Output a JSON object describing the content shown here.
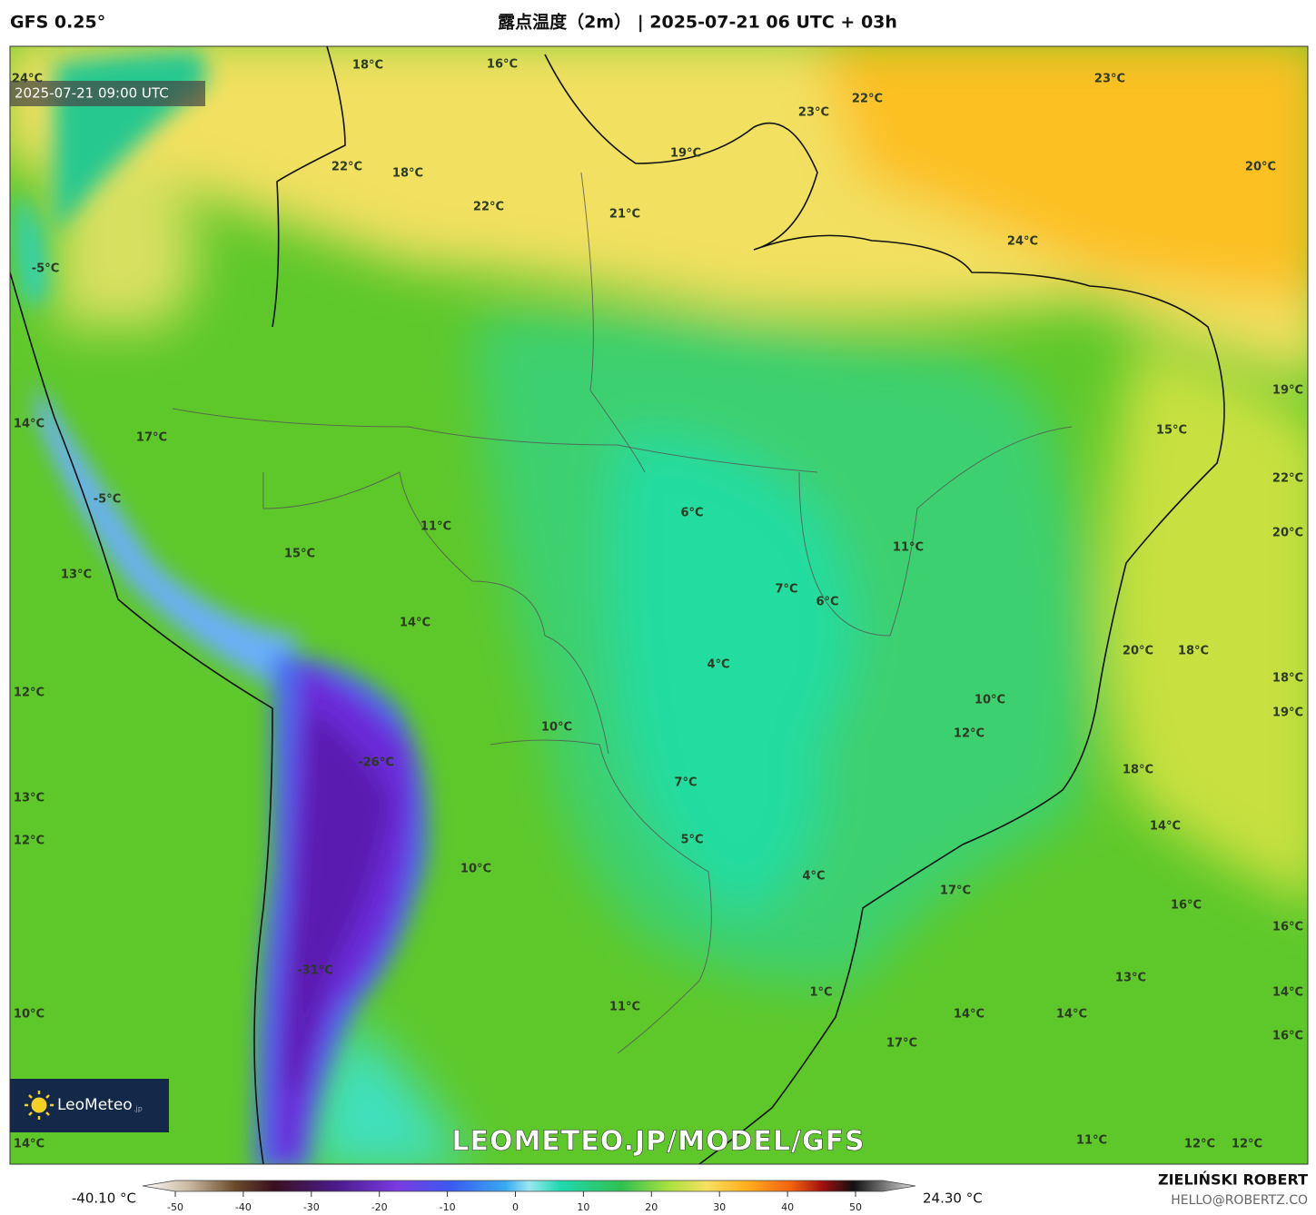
{
  "header": {
    "model": "GFS 0.25°",
    "title": "露点温度（2m） | 2025-07-21 06 UTC + 03h"
  },
  "valid_time": "2025-07-21 09:00 UTC",
  "map_labels": [
    "24°C",
    "18°C",
    "16°C",
    "22°C",
    "23°C",
    "23°C",
    "19°C",
    "20°C",
    "22°C",
    "18°C",
    "22°C",
    "21°C",
    "24°C",
    "-5°C",
    "19°C",
    "14°C",
    "17°C",
    "15°C",
    "-5°C",
    "22°C",
    "6°C",
    "20°C",
    "11°C",
    "11°C",
    "15°C",
    "13°C",
    "7°C",
    "6°C",
    "14°C",
    "4°C",
    "20°C",
    "18°C",
    "18°C",
    "12°C",
    "10°C",
    "19°C",
    "10°C",
    "12°C",
    "-26°C",
    "18°C",
    "7°C",
    "13°C",
    "14°C",
    "12°C",
    "5°C",
    "4°C",
    "10°C",
    "17°C",
    "16°C",
    "16°C",
    "-31°C",
    "13°C",
    "1°C",
    "14°C",
    "11°C",
    "10°C",
    "14°C",
    "14°C",
    "16°C",
    "17°C",
    "14°C",
    "11°C",
    "12°C",
    "12°C"
  ],
  "logo": {
    "name": "LeoMeteo",
    "suffix": ".jp"
  },
  "watermark": "LEOMETEO.JP/MODEL/GFS",
  "colorbar": {
    "min_label": "-40.10 °C",
    "max_label": "24.30 °C",
    "ticks": [
      -50,
      -40,
      -30,
      -20,
      -10,
      0,
      10,
      20,
      30,
      40,
      50
    ]
  },
  "credit": {
    "name": "ZIELIŃSKI ROBERT",
    "email": "HELLO@ROBERTZ.CO"
  }
}
